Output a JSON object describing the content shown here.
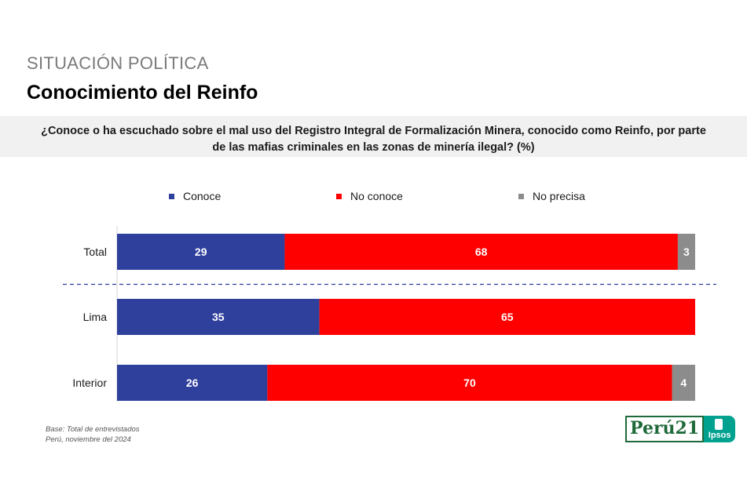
{
  "header": {
    "section": "SITUACIÓN POLÍTICA",
    "title": "Conocimiento del Reinfo"
  },
  "question": {
    "line1": "¿Conoce o ha escuchado sobre el mal uso del Registro Integral de Formalización Minera, conocido como Reinfo, por parte",
    "line2": "de las mafias criminales en las zonas de minería ilegal? (%)"
  },
  "footer": {
    "base": "Base: Total de entrevistados",
    "source": "Perú, noviembre del 2024"
  },
  "logo": {
    "brand": "Perú21",
    "partner": "Ipsos"
  },
  "chart_data": {
    "type": "bar",
    "orientation": "horizontal",
    "stacked": true,
    "categories": [
      "Total",
      "Lima",
      "Interior"
    ],
    "series": [
      {
        "name": "Conoce",
        "values": [
          29,
          35,
          26
        ],
        "color": "#2e3f9c"
      },
      {
        "name": "No conoce",
        "values": [
          68,
          65,
          70
        ],
        "color": "#ff0000"
      },
      {
        "name": "No precisa",
        "values": [
          3,
          0,
          4
        ],
        "color": "#8c8c8c"
      }
    ],
    "xlim": [
      0,
      100
    ],
    "legend_position": "top",
    "separator_after": "Total",
    "grid": false
  }
}
